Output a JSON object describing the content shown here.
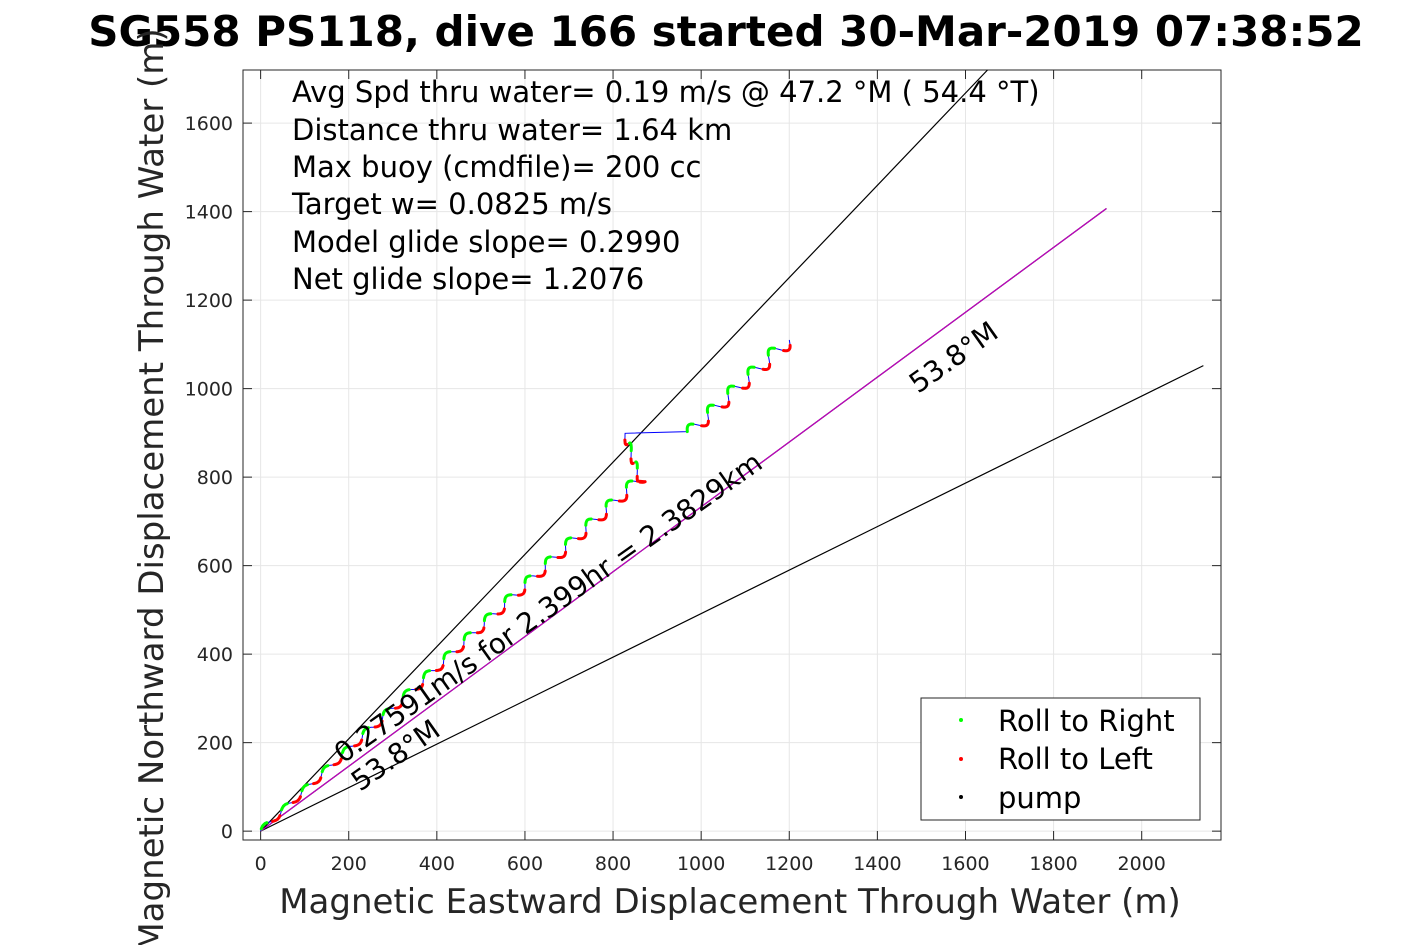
{
  "chart_data": {
    "type": "line",
    "title": "SG558 PS118, dive 166 started 30-Mar-2019 07:38:52",
    "xlabel": "Magnetic Eastward Displacement Through Water (m)",
    "ylabel": "Magnetic Northward Displacement Through Water (m)",
    "xlim": [
      -40,
      2180
    ],
    "ylim": [
      -20,
      1720
    ],
    "xticks": [
      0,
      200,
      400,
      600,
      800,
      1000,
      1200,
      1400,
      1600,
      1800,
      2000
    ],
    "yticks": [
      0,
      200,
      400,
      600,
      800,
      1000,
      1200,
      1400,
      1600
    ],
    "grid": true,
    "stats": [
      "Avg Spd thru water=  0.19 m/s @  47.2 °M ( 54.4 °T)",
      "Distance thru water=  1.64 km",
      "Max buoy (cmdfile)= 200 cc",
      "Target w= 0.0825 m/s",
      "Model glide slope= 0.2990",
      "Net glide slope= 1.2076"
    ],
    "annotations": {
      "speed_label": "0.27591m/s for 2.399hr = 2.3829km",
      "heading_upper": "53.8°M",
      "heading_lower": "53.8°M"
    },
    "reference_lines": [
      {
        "x": [
          0,
          1650
        ],
        "y": [
          0,
          1720
        ],
        "color": "#000000"
      },
      {
        "x": [
          0,
          2140
        ],
        "y": [
          0,
          1052
        ],
        "color": "#000000"
      },
      {
        "x": [
          0,
          1920
        ],
        "y": [
          0,
          1407
        ],
        "color": "#000000"
      },
      {
        "x": [
          0,
          1920
        ],
        "y": [
          0,
          1407
        ],
        "color": "#c000c0"
      }
    ],
    "track": {
      "color": "#0000ff",
      "start": [
        0,
        0
      ],
      "end": [
        1200,
        1110
      ],
      "fold_start": 790,
      "fold_end": 900,
      "fold_x_max": 860
    },
    "legend": {
      "position": "bottom-right",
      "entries": [
        {
          "label": "Roll to Right",
          "color": "#00ff00"
        },
        {
          "label": "Roll to Left",
          "color": "#ff0000"
        },
        {
          "label": "pump",
          "color": "#000000"
        }
      ]
    }
  }
}
